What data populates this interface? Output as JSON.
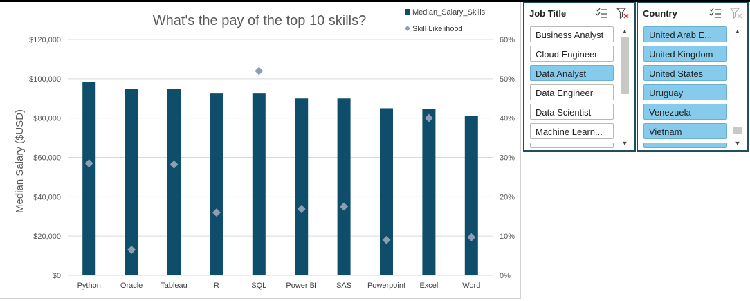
{
  "chart_data": {
    "type": "bar",
    "title": "What's the pay of the top 10 skills?",
    "ylabel": "Median Salary ($USD)",
    "categories": [
      "Python",
      "Oracle",
      "Tableau",
      "R",
      "SQL",
      "Power BI",
      "SAS",
      "Powerpoint",
      "Excel",
      "Word"
    ],
    "series": [
      {
        "name": "Median_Salary_Skills",
        "kind": "bar",
        "axis": "left",
        "color": "#0e4e6b",
        "values": [
          98500,
          95000,
          95000,
          92500,
          92500,
          90000,
          90000,
          85000,
          84500,
          81000
        ]
      },
      {
        "name": "Skill Likelihood",
        "kind": "marker",
        "axis": "right",
        "color": "#8c9eb4",
        "values": [
          0.285,
          0.065,
          0.282,
          0.16,
          0.52,
          0.169,
          0.175,
          0.09,
          0.4,
          0.097
        ]
      }
    ],
    "ylim": [
      0,
      120000
    ],
    "y2lim": [
      0,
      0.6
    ],
    "yticks": [
      "$0",
      "$20,000",
      "$40,000",
      "$60,000",
      "$80,000",
      "$100,000",
      "$120,000"
    ],
    "y2ticks": [
      "0%",
      "10%",
      "20%",
      "30%",
      "40%",
      "50%",
      "60%"
    ],
    "legend_position": "top-right",
    "grid": true
  },
  "slicers": {
    "job_title": {
      "title": "Job Title",
      "items": [
        {
          "label": "Business Analyst",
          "selected": false
        },
        {
          "label": "Cloud Engineer",
          "selected": false
        },
        {
          "label": "Data Analyst",
          "selected": true
        },
        {
          "label": "Data Engineer",
          "selected": false
        },
        {
          "label": "Data Scientist",
          "selected": false
        },
        {
          "label": "Machine Learn...",
          "selected": false
        }
      ]
    },
    "country": {
      "title": "Country",
      "items": [
        {
          "label": "United Arab E...",
          "selected": true
        },
        {
          "label": "United Kingdom",
          "selected": true
        },
        {
          "label": "United States",
          "selected": true
        },
        {
          "label": "Uruguay",
          "selected": true
        },
        {
          "label": "Venezuela",
          "selected": true
        },
        {
          "label": "Vietnam",
          "selected": true
        }
      ]
    }
  }
}
